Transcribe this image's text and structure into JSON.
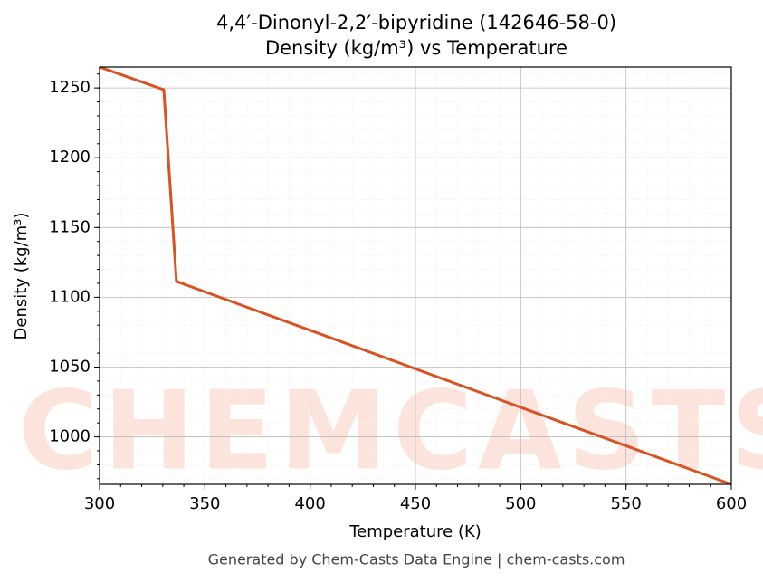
{
  "chart_data": {
    "type": "line",
    "title": "4,4′-Dinonyl-2,2′-bipyridine (142646-58-0)",
    "subtitle": "Density (kg/m³) vs Temperature",
    "xlabel": "Temperature (K)",
    "ylabel": "Density (kg/m³)",
    "footer": "Generated by Chem-Casts Data Engine | chem-casts.com",
    "watermark": "CHEMCASTS",
    "x": [
      300,
      330.5,
      336.5,
      600
    ],
    "series": [
      {
        "name": "Density",
        "color": "#d95322",
        "values": [
          1265,
          1248.7,
          1111.4,
          966
        ]
      }
    ],
    "xlim": [
      300,
      600
    ],
    "ylim": [
      966,
      1265
    ],
    "xticks": [
      300,
      350,
      400,
      450,
      500,
      550,
      600
    ],
    "yticks": [
      1000,
      1050,
      1100,
      1150,
      1200,
      1250
    ],
    "grid": true
  }
}
